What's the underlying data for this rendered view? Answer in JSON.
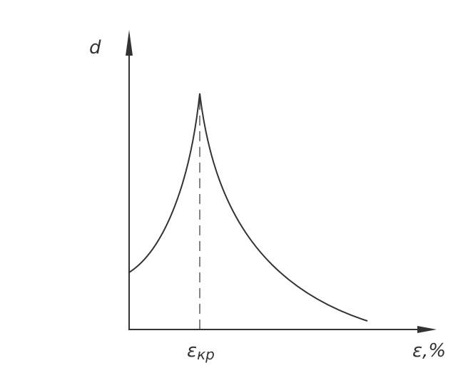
{
  "axes": {
    "y_label": "d",
    "x_label": "ε,%"
  },
  "marker": {
    "symbol": "ε",
    "subscript": "кр"
  }
}
